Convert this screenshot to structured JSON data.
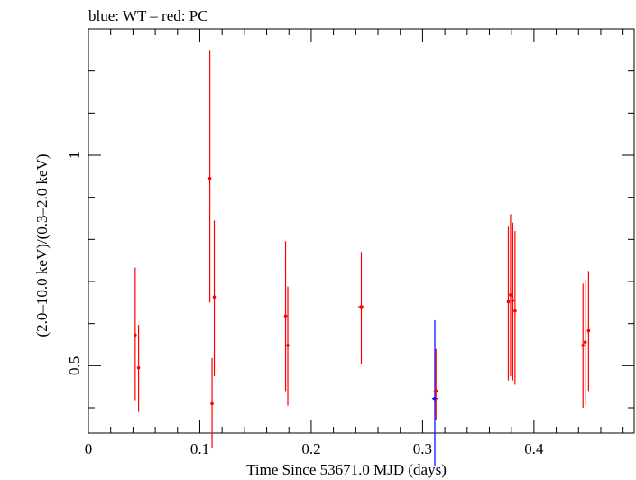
{
  "chart_data": {
    "type": "scatter",
    "title": "blue: WT – red: PC",
    "xlabel": "Time Since 53671.0 MJD (days)",
    "ylabel": "(2.0–10.0 keV)/(0.3–2.0 keV)",
    "xlim": [
      0,
      0.49
    ],
    "ylim": [
      0.34,
      1.3
    ],
    "xticks": [
      0,
      0.1,
      0.2,
      0.3,
      0.4
    ],
    "xtick_labels": [
      "0",
      "0.1",
      "0.2",
      "0.3",
      "0.4"
    ],
    "yticks": [
      0.5,
      1
    ],
    "ytick_labels": [
      "0.5",
      "1"
    ],
    "grid": false,
    "series": [
      {
        "color": "#0000ff",
        "points": [
          {
            "x": 0.311,
            "y": 0.422,
            "ylo": 0.262,
            "yhi": 0.608,
            "xerr": 0.0025
          }
        ]
      },
      {
        "color": "#ff0000",
        "points": [
          {
            "x": 0.042,
            "y": 0.573,
            "ylo": 0.418,
            "yhi": 0.733,
            "xerr": 0.001
          },
          {
            "x": 0.045,
            "y": 0.495,
            "ylo": 0.39,
            "yhi": 0.597,
            "xerr": 0.001
          },
          {
            "x": 0.109,
            "y": 0.945,
            "ylo": 0.65,
            "yhi": 1.25,
            "xerr": 0.001
          },
          {
            "x": 0.111,
            "y": 0.41,
            "ylo": 0.304,
            "yhi": 0.518,
            "xerr": 0.001
          },
          {
            "x": 0.113,
            "y": 0.663,
            "ylo": 0.475,
            "yhi": 0.845,
            "xerr": 0.001
          },
          {
            "x": 0.177,
            "y": 0.618,
            "ylo": 0.44,
            "yhi": 0.796,
            "xerr": 0.001
          },
          {
            "x": 0.179,
            "y": 0.548,
            "ylo": 0.405,
            "yhi": 0.688,
            "xerr": 0.001
          },
          {
            "x": 0.245,
            "y": 0.64,
            "ylo": 0.505,
            "yhi": 0.77,
            "xerr": 0.003
          },
          {
            "x": 0.312,
            "y": 0.44,
            "ylo": 0.37,
            "yhi": 0.54,
            "xerr": 0.002
          },
          {
            "x": 0.377,
            "y": 0.652,
            "ylo": 0.465,
            "yhi": 0.83,
            "xerr": 0.001
          },
          {
            "x": 0.379,
            "y": 0.668,
            "ylo": 0.475,
            "yhi": 0.86,
            "xerr": 0.001
          },
          {
            "x": 0.381,
            "y": 0.655,
            "ylo": 0.465,
            "yhi": 0.84,
            "xerr": 0.001
          },
          {
            "x": 0.383,
            "y": 0.63,
            "ylo": 0.455,
            "yhi": 0.82,
            "xerr": 0.001
          },
          {
            "x": 0.444,
            "y": 0.548,
            "ylo": 0.4,
            "yhi": 0.695,
            "xerr": 0.001
          },
          {
            "x": 0.446,
            "y": 0.556,
            "ylo": 0.405,
            "yhi": 0.705,
            "xerr": 0.001
          },
          {
            "x": 0.449,
            "y": 0.583,
            "ylo": 0.44,
            "yhi": 0.725,
            "xerr": 0.001
          }
        ]
      }
    ]
  }
}
